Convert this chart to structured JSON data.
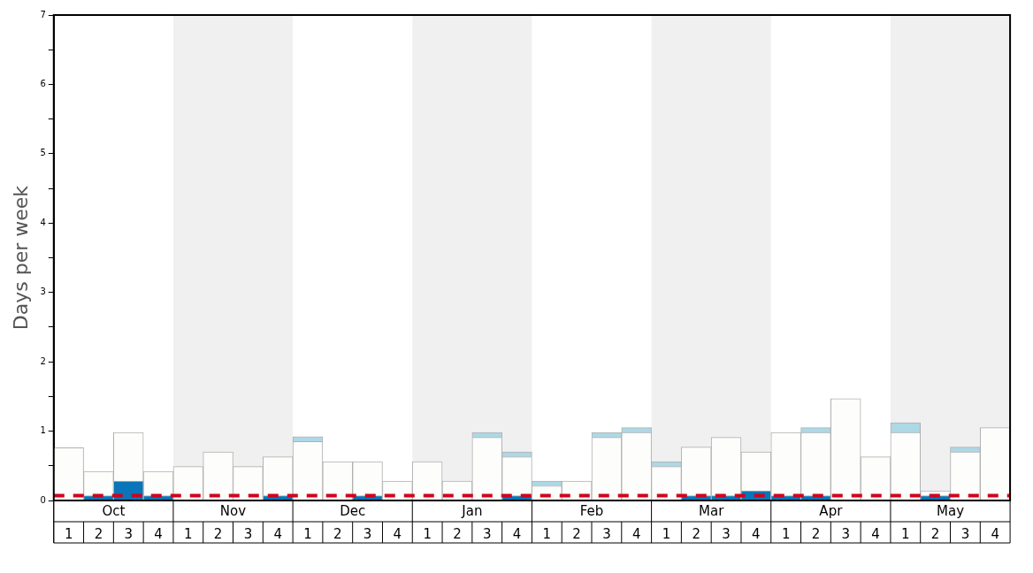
{
  "chart_data": {
    "type": "bar",
    "stacked": true,
    "ylabel": "Days per week",
    "categories": [
      "1",
      "2",
      "3",
      "4",
      "1",
      "2",
      "3",
      "4",
      "1",
      "2",
      "3",
      "4",
      "1",
      "2",
      "3",
      "4",
      "1",
      "2",
      "3",
      "4",
      "1",
      "2",
      "3",
      "4",
      "1",
      "2",
      "3",
      "4",
      "1",
      "2",
      "3",
      "4"
    ],
    "series": [
      {
        "color": "#0a75b8",
        "values": [
          0,
          0.07,
          0.28,
          0.07,
          0,
          0,
          0,
          0.07,
          0,
          0,
          0.07,
          0,
          0,
          0,
          0,
          0.07,
          0,
          0,
          0,
          0,
          0,
          0.07,
          0.07,
          0.14,
          0.07,
          0.07,
          0,
          0,
          0,
          0.07,
          0,
          0
        ]
      },
      {
        "color": "#fdfdfb",
        "values": [
          0.76,
          0.35,
          0.7,
          0.35,
          0.49,
          0.7,
          0.49,
          0.56,
          0.85,
          0.56,
          0.49,
          0.28,
          0.56,
          0.28,
          0.91,
          0.56,
          0.21,
          0.28,
          0.91,
          0.98,
          0.49,
          0.7,
          0.84,
          0.56,
          0.91,
          0.91,
          1.47,
          0.63,
          0.98,
          0.07,
          0.7,
          1.05
        ]
      },
      {
        "color": "#add8e6",
        "values": [
          0,
          0,
          0,
          0,
          0,
          0,
          0,
          0,
          0.07,
          0,
          0,
          0,
          0,
          0,
          0.07,
          0.07,
          0.07,
          0,
          0.07,
          0.07,
          0.07,
          0,
          0,
          0,
          0,
          0.07,
          0,
          0,
          0.14,
          0,
          0.07,
          0
        ]
      }
    ],
    "ylim": [
      0,
      7
    ],
    "yticks": [
      0,
      {
        "value": 0.5,
        "label": null
      },
      1,
      {
        "value": 1.5,
        "label": null
      },
      2,
      {
        "value": 2.5,
        "label": null
      },
      3,
      {
        "value": 3.5,
        "label": null
      },
      4,
      {
        "value": 4.5,
        "label": null
      },
      5,
      {
        "value": 5.5,
        "label": null
      },
      6,
      {
        "value": 6.5,
        "label": null
      },
      7
    ],
    "annotations": [
      "Oct",
      "Nov",
      "Dec",
      "Jan",
      "Feb",
      "Mar",
      "Apr",
      "May"
    ],
    "ref_lines": [
      {
        "axis": "y",
        "value": 0.07,
        "color": "#d0021b",
        "line_style": "dashed"
      }
    ],
    "grid": false,
    "legend": false
  }
}
